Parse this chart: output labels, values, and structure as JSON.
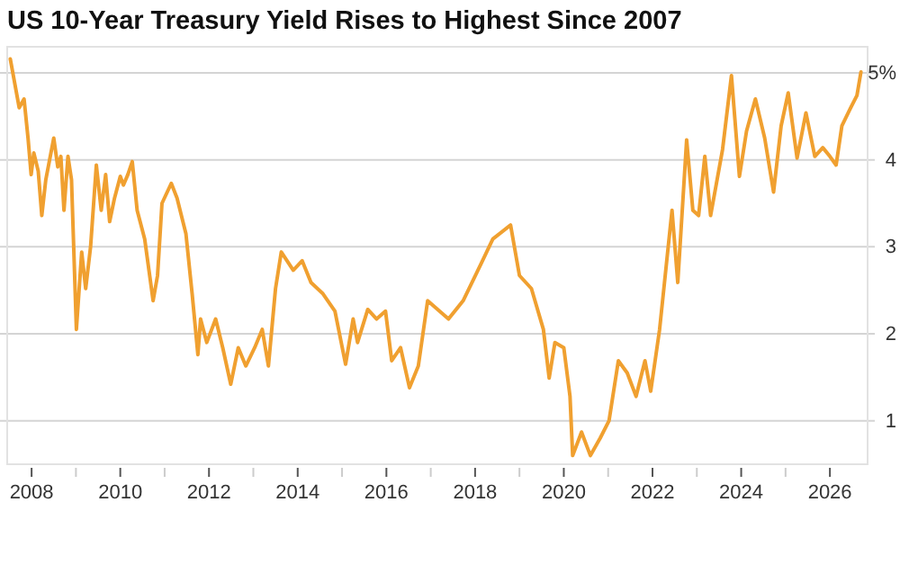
{
  "chart_data": {
    "type": "line",
    "title": "US 10-Year Treasury Yield Rises to Highest Since 2007",
    "x": [
      2007.52,
      2007.72,
      2007.83,
      2007.92,
      2007.99,
      2008.05,
      2008.15,
      2008.23,
      2008.32,
      2008.5,
      2008.59,
      2008.66,
      2008.73,
      2008.82,
      2008.9,
      2009.01,
      2009.13,
      2009.22,
      2009.33,
      2009.46,
      2009.57,
      2009.67,
      2009.76,
      2009.87,
      2010.0,
      2010.07,
      2010.17,
      2010.27,
      2010.38,
      2010.55,
      2010.74,
      2010.84,
      2010.94,
      2011.15,
      2011.28,
      2011.48,
      2011.62,
      2011.75,
      2011.81,
      2011.95,
      2012.15,
      2012.31,
      2012.49,
      2012.66,
      2012.83,
      2013.03,
      2013.2,
      2013.34,
      2013.5,
      2013.63,
      2013.9,
      2014.1,
      2014.3,
      2014.57,
      2014.84,
      2015.08,
      2015.25,
      2015.35,
      2015.58,
      2015.78,
      2015.98,
      2016.12,
      2016.32,
      2016.52,
      2016.72,
      2016.93,
      2017.4,
      2017.73,
      2018.13,
      2018.4,
      2018.8,
      2019.0,
      2019.27,
      2019.54,
      2019.67,
      2019.8,
      2020.0,
      2020.14,
      2020.2,
      2020.4,
      2020.6,
      2020.82,
      2021.02,
      2021.23,
      2021.43,
      2021.63,
      2021.83,
      2021.96,
      2022.16,
      2022.44,
      2022.57,
      2022.77,
      2022.91,
      2023.04,
      2023.18,
      2023.31,
      2023.58,
      2023.78,
      2023.96,
      2024.12,
      2024.32,
      2024.53,
      2024.73,
      2024.9,
      2025.06,
      2025.26,
      2025.46,
      2025.66,
      2025.84,
      2026.0,
      2026.14,
      2026.27,
      2026.47,
      2026.61,
      2026.7
    ],
    "series": [
      {
        "color": "#f0a030",
        "values": [
          5.16,
          4.6,
          4.7,
          4.25,
          3.83,
          4.08,
          3.87,
          3.36,
          3.77,
          4.25,
          3.92,
          4.04,
          3.42,
          4.04,
          3.77,
          2.05,
          2.94,
          2.52,
          3.0,
          3.94,
          3.42,
          3.83,
          3.29,
          3.56,
          3.81,
          3.71,
          3.83,
          3.98,
          3.42,
          3.09,
          2.38,
          2.67,
          3.5,
          3.73,
          3.56,
          3.15,
          2.46,
          1.76,
          2.17,
          1.9,
          2.17,
          1.84,
          1.42,
          1.84,
          1.63,
          1.84,
          2.05,
          1.63,
          2.52,
          2.94,
          2.73,
          2.84,
          2.59,
          2.46,
          2.26,
          1.65,
          2.17,
          1.9,
          2.28,
          2.17,
          2.26,
          1.69,
          1.84,
          1.38,
          1.63,
          2.38,
          2.17,
          2.38,
          2.8,
          3.09,
          3.25,
          2.67,
          2.52,
          2.05,
          1.49,
          1.9,
          1.84,
          1.28,
          0.6,
          0.87,
          0.6,
          0.8,
          1.0,
          1.69,
          1.55,
          1.28,
          1.69,
          1.34,
          2.05,
          3.42,
          2.59,
          4.23,
          3.42,
          3.36,
          4.04,
          3.36,
          4.12,
          4.97,
          3.81,
          4.33,
          4.7,
          4.25,
          3.63,
          4.39,
          4.77,
          4.02,
          4.54,
          4.04,
          4.14,
          4.04,
          3.94,
          4.39,
          4.6,
          4.74,
          5.01
        ]
      }
    ],
    "xlim": [
      2007.45,
      2026.85
    ],
    "xticks": [
      2008,
      {
        "value": 2009,
        "label": null
      },
      2010,
      {
        "value": 2011,
        "label": null
      },
      2012,
      {
        "value": 2013,
        "label": null
      },
      2014,
      {
        "value": 2015,
        "label": null
      },
      2016,
      {
        "value": 2017,
        "label": null
      },
      2018,
      {
        "value": 2019,
        "label": null
      },
      2020,
      {
        "value": 2021,
        "label": null
      },
      2022,
      {
        "value": 2023,
        "label": null
      },
      2024,
      {
        "value": 2025,
        "label": null
      },
      2026
    ],
    "ylim": [
      0.5,
      5.3
    ],
    "yticks": [
      1,
      2,
      3,
      4,
      {
        "value": 5,
        "label": "5%"
      }
    ],
    "grid": "y",
    "marker": "none",
    "line_style": "solid"
  }
}
